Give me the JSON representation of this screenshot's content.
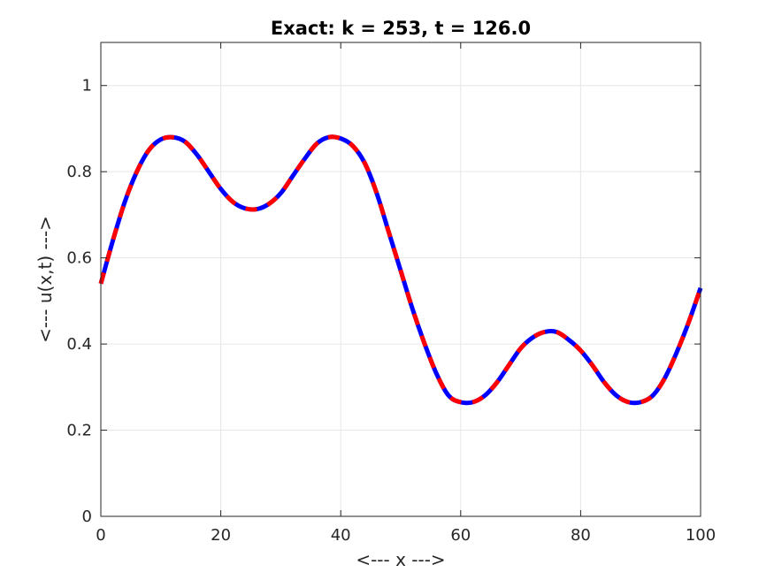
{
  "chart_data": {
    "type": "line",
    "title": "Exact: k = 253, t = 126.0",
    "xlabel": "<--- x --->",
    "ylabel": "<--- u(x,t) --->",
    "xlim": [
      0,
      100
    ],
    "ylim": [
      0,
      1.1
    ],
    "x_ticks": [
      0,
      20,
      40,
      60,
      80,
      100
    ],
    "x_tick_labels": [
      "0",
      "20",
      "40",
      "60",
      "80",
      "100"
    ],
    "y_ticks": [
      0,
      0.2,
      0.4,
      0.6,
      0.8,
      1
    ],
    "y_tick_labels": [
      "0",
      "0.2",
      "0.4",
      "0.6",
      "0.8",
      "1"
    ],
    "grid": true,
    "line_style": "dashed, alternating colors",
    "colors": {
      "dash_a": "#ff0000",
      "dash_b": "#0000ff",
      "grid": "#e6e6e6",
      "axes": "#262626"
    },
    "series": [
      {
        "x": [
          0,
          2,
          4,
          6,
          8,
          10,
          12,
          14,
          16,
          18,
          20,
          22,
          24,
          26,
          28,
          30,
          32,
          34,
          36,
          38,
          40,
          42,
          44,
          46,
          48,
          50,
          52,
          54,
          56,
          58,
          60,
          62,
          64,
          66,
          68,
          70,
          72,
          74,
          76,
          78,
          80,
          82,
          84,
          86,
          88,
          90,
          92,
          94,
          96,
          98,
          100
        ],
        "values": [
          0.54,
          0.64,
          0.73,
          0.8,
          0.85,
          0.875,
          0.88,
          0.87,
          0.84,
          0.8,
          0.76,
          0.73,
          0.715,
          0.713,
          0.725,
          0.75,
          0.79,
          0.83,
          0.865,
          0.88,
          0.877,
          0.86,
          0.82,
          0.75,
          0.66,
          0.57,
          0.48,
          0.4,
          0.33,
          0.28,
          0.265,
          0.265,
          0.28,
          0.31,
          0.35,
          0.39,
          0.415,
          0.428,
          0.428,
          0.41,
          0.385,
          0.35,
          0.31,
          0.28,
          0.265,
          0.265,
          0.28,
          0.32,
          0.38,
          0.45,
          0.53
        ]
      }
    ]
  }
}
